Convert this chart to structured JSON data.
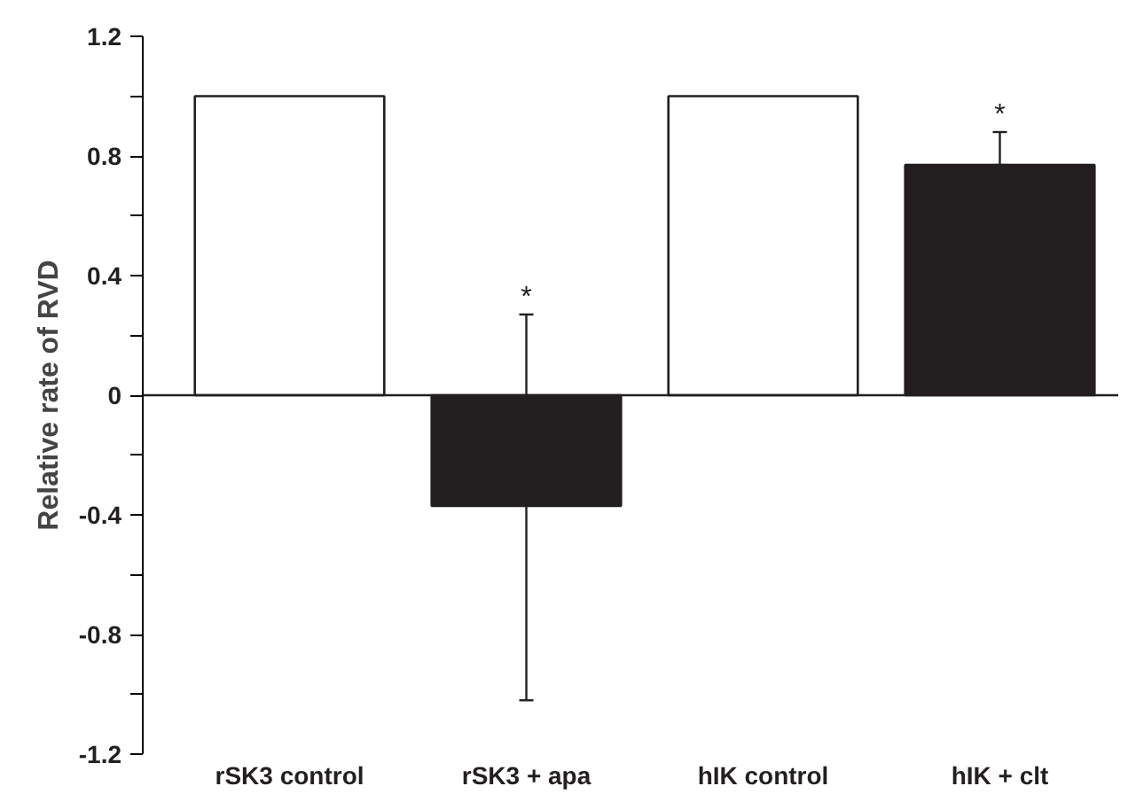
{
  "chart_data": {
    "type": "bar",
    "ylabel": "Relative rate of RVD",
    "categories": [
      "rSK3 control",
      "rSK3 + apa",
      "hIK control",
      "hIK + clt"
    ],
    "values": [
      1.0,
      -0.37,
      1.0,
      0.77
    ],
    "colors": [
      "#ffffff",
      "#231f20",
      "#ffffff",
      "#231f20"
    ],
    "errors": [
      null,
      [
        -1.02,
        0.27
      ],
      null,
      [
        0.77,
        0.88
      ]
    ],
    "ylim": [
      -1.2,
      1.2
    ],
    "yticks": [
      {
        "value": -1.2,
        "label": "-1.2"
      },
      {
        "value": -1.0,
        "label": null
      },
      {
        "value": -0.8,
        "label": "-0.8"
      },
      {
        "value": -0.6,
        "label": null
      },
      {
        "value": -0.4,
        "label": "-0.4"
      },
      {
        "value": -0.2,
        "label": null
      },
      0,
      {
        "value": 0.2,
        "label": null
      },
      {
        "value": 0.4,
        "label": "0.4"
      },
      {
        "value": 0.6,
        "label": null
      },
      {
        "value": 0.8,
        "label": "0.8"
      },
      {
        "value": 1.0,
        "label": null
      },
      {
        "value": 1.2,
        "label": "1.2"
      }
    ],
    "annotations": [
      {
        "text": "*",
        "x": "rSK3 + apa",
        "y": 0.27
      },
      {
        "text": "*",
        "x": "hIK + clt",
        "y": 0.88
      }
    ]
  }
}
